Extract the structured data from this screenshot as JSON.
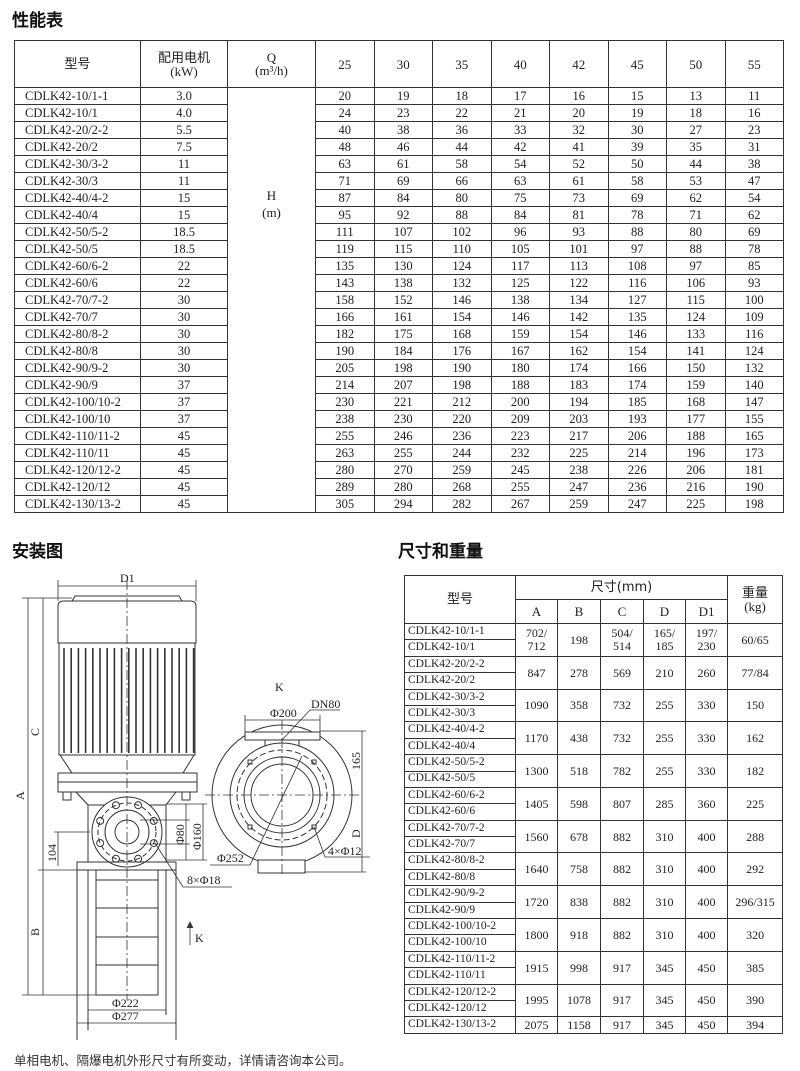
{
  "performance": {
    "title": "性能表",
    "headers": {
      "model": "型号",
      "motor": "配用电机",
      "motor_unit": "(kW)",
      "q": "Q",
      "q_unit": "(m³/h)",
      "h": "H",
      "h_unit": "(m)"
    },
    "flows": [
      "25",
      "30",
      "35",
      "40",
      "42",
      "45",
      "50",
      "55"
    ],
    "rows": [
      {
        "model": "CDLK42-10/1-1",
        "kw": "3.0",
        "h": [
          "20",
          "19",
          "18",
          "17",
          "16",
          "15",
          "13",
          "11"
        ]
      },
      {
        "model": "CDLK42-10/1",
        "kw": "4.0",
        "h": [
          "24",
          "23",
          "22",
          "21",
          "20",
          "19",
          "18",
          "16"
        ]
      },
      {
        "model": "CDLK42-20/2-2",
        "kw": "5.5",
        "h": [
          "40",
          "38",
          "36",
          "33",
          "32",
          "30",
          "27",
          "23"
        ]
      },
      {
        "model": "CDLK42-20/2",
        "kw": "7.5",
        "h": [
          "48",
          "46",
          "44",
          "42",
          "41",
          "39",
          "35",
          "31"
        ]
      },
      {
        "model": "CDLK42-30/3-2",
        "kw": "11",
        "h": [
          "63",
          "61",
          "58",
          "54",
          "52",
          "50",
          "44",
          "38"
        ]
      },
      {
        "model": "CDLK42-30/3",
        "kw": "11",
        "h": [
          "71",
          "69",
          "66",
          "63",
          "61",
          "58",
          "53",
          "47"
        ]
      },
      {
        "model": "CDLK42-40/4-2",
        "kw": "15",
        "h": [
          "87",
          "84",
          "80",
          "75",
          "73",
          "69",
          "62",
          "54"
        ]
      },
      {
        "model": "CDLK42-40/4",
        "kw": "15",
        "h": [
          "95",
          "92",
          "88",
          "84",
          "81",
          "78",
          "71",
          "62"
        ]
      },
      {
        "model": "CDLK42-50/5-2",
        "kw": "18.5",
        "h": [
          "111",
          "107",
          "102",
          "96",
          "93",
          "88",
          "80",
          "69"
        ]
      },
      {
        "model": "CDLK42-50/5",
        "kw": "18.5",
        "h": [
          "119",
          "115",
          "110",
          "105",
          "101",
          "97",
          "88",
          "78"
        ]
      },
      {
        "model": "CDLK42-60/6-2",
        "kw": "22",
        "h": [
          "135",
          "130",
          "124",
          "117",
          "113",
          "108",
          "97",
          "85"
        ]
      },
      {
        "model": "CDLK42-60/6",
        "kw": "22",
        "h": [
          "143",
          "138",
          "132",
          "125",
          "122",
          "116",
          "106",
          "93"
        ]
      },
      {
        "model": "CDLK42-70/7-2",
        "kw": "30",
        "h": [
          "158",
          "152",
          "146",
          "138",
          "134",
          "127",
          "115",
          "100"
        ]
      },
      {
        "model": "CDLK42-70/7",
        "kw": "30",
        "h": [
          "166",
          "161",
          "154",
          "146",
          "142",
          "135",
          "124",
          "109"
        ]
      },
      {
        "model": "CDLK42-80/8-2",
        "kw": "30",
        "h": [
          "182",
          "175",
          "168",
          "159",
          "154",
          "146",
          "133",
          "116"
        ]
      },
      {
        "model": "CDLK42-80/8",
        "kw": "30",
        "h": [
          "190",
          "184",
          "176",
          "167",
          "162",
          "154",
          "141",
          "124"
        ]
      },
      {
        "model": "CDLK42-90/9-2",
        "kw": "30",
        "h": [
          "205",
          "198",
          "190",
          "180",
          "174",
          "166",
          "150",
          "132"
        ]
      },
      {
        "model": "CDLK42-90/9",
        "kw": "37",
        "h": [
          "214",
          "207",
          "198",
          "188",
          "183",
          "174",
          "159",
          "140"
        ]
      },
      {
        "model": "CDLK42-100/10-2",
        "kw": "37",
        "h": [
          "230",
          "221",
          "212",
          "200",
          "194",
          "185",
          "168",
          "147"
        ]
      },
      {
        "model": "CDLK42-100/10",
        "kw": "37",
        "h": [
          "238",
          "230",
          "220",
          "209",
          "203",
          "193",
          "177",
          "155"
        ]
      },
      {
        "model": "CDLK42-110/11-2",
        "kw": "45",
        "h": [
          "255",
          "246",
          "236",
          "223",
          "217",
          "206",
          "188",
          "165"
        ]
      },
      {
        "model": "CDLK42-110/11",
        "kw": "45",
        "h": [
          "263",
          "255",
          "244",
          "232",
          "225",
          "214",
          "196",
          "173"
        ]
      },
      {
        "model": "CDLK42-120/12-2",
        "kw": "45",
        "h": [
          "280",
          "270",
          "259",
          "245",
          "238",
          "226",
          "206",
          "181"
        ]
      },
      {
        "model": "CDLK42-120/12",
        "kw": "45",
        "h": [
          "289",
          "280",
          "268",
          "255",
          "247",
          "236",
          "216",
          "190"
        ]
      },
      {
        "model": "CDLK42-130/13-2",
        "kw": "45",
        "h": [
          "305",
          "294",
          "282",
          "267",
          "259",
          "247",
          "225",
          "198"
        ]
      }
    ]
  },
  "installation": {
    "title": "安装图",
    "labels": {
      "d1": "D1",
      "a": "A",
      "c": "C",
      "b": "B",
      "h104": "104",
      "phi80": "Φ80",
      "phi160": "Φ160",
      "bolts8": "8×Φ18",
      "k_arrow": "K",
      "phi222": "Φ222",
      "phi277": "Φ277",
      "k_view": "K",
      "dn80": "DN80",
      "phi200": "Φ200",
      "d165": "165",
      "d": "D",
      "phi252": "Φ252",
      "bolts4": "4×Φ12"
    }
  },
  "dimensions": {
    "title": "尺寸和重量",
    "headers": {
      "model": "型号",
      "size": "尺寸(mm)",
      "weight": "重量",
      "weight_unit": "(kg)",
      "cols": [
        "A",
        "B",
        "C",
        "D",
        "D1"
      ]
    },
    "groups": [
      {
        "models": [
          "CDLK42-10/1-1",
          "CDLK42-10/1"
        ],
        "A": "702/\n712",
        "B": "198",
        "C": "504/\n514",
        "D": "165/\n185",
        "D1": "197/\n230",
        "kg": "60/65"
      },
      {
        "models": [
          "CDLK42-20/2-2",
          "CDLK42-20/2"
        ],
        "A": "847",
        "B": "278",
        "C": "569",
        "D": "210",
        "D1": "260",
        "kg": "77/84"
      },
      {
        "models": [
          "CDLK42-30/3-2",
          "CDLK42-30/3"
        ],
        "A": "1090",
        "B": "358",
        "C": "732",
        "D": "255",
        "D1": "330",
        "kg": "150"
      },
      {
        "models": [
          "CDLK42-40/4-2",
          "CDLK42-40/4"
        ],
        "A": "1170",
        "B": "438",
        "C": "732",
        "D": "255",
        "D1": "330",
        "kg": "162"
      },
      {
        "models": [
          "CDLK42-50/5-2",
          "CDLK42-50/5"
        ],
        "A": "1300",
        "B": "518",
        "C": "782",
        "D": "255",
        "D1": "330",
        "kg": "182"
      },
      {
        "models": [
          "CDLK42-60/6-2",
          "CDLK42-60/6"
        ],
        "A": "1405",
        "B": "598",
        "C": "807",
        "D": "285",
        "D1": "360",
        "kg": "225"
      },
      {
        "models": [
          "CDLK42-70/7-2",
          "CDLK42-70/7"
        ],
        "A": "1560",
        "B": "678",
        "C": "882",
        "D": "310",
        "D1": "400",
        "kg": "288"
      },
      {
        "models": [
          "CDLK42-80/8-2",
          "CDLK42-80/8"
        ],
        "A": "1640",
        "B": "758",
        "C": "882",
        "D": "310",
        "D1": "400",
        "kg": "292"
      },
      {
        "models": [
          "CDLK42-90/9-2",
          "CDLK42-90/9"
        ],
        "A": "1720",
        "B": "838",
        "C": "882",
        "D": "310",
        "D1": "400",
        "kg": "296/315"
      },
      {
        "models": [
          "CDLK42-100/10-2",
          "CDLK42-100/10"
        ],
        "A": "1800",
        "B": "918",
        "C": "882",
        "D": "310",
        "D1": "400",
        "kg": "320"
      },
      {
        "models": [
          "CDLK42-110/11-2",
          "CDLK42-110/11"
        ],
        "A": "1915",
        "B": "998",
        "C": "917",
        "D": "345",
        "D1": "450",
        "kg": "385"
      },
      {
        "models": [
          "CDLK42-120/12-2",
          "CDLK42-120/12"
        ],
        "A": "1995",
        "B": "1078",
        "C": "917",
        "D": "345",
        "D1": "450",
        "kg": "390"
      },
      {
        "models": [
          "CDLK42-130/13-2"
        ],
        "A": "2075",
        "B": "1158",
        "C": "917",
        "D": "345",
        "D1": "450",
        "kg": "394"
      }
    ]
  },
  "footer": "单相电机、隔爆电机外形尺寸有所变动，详情请咨询本公司。"
}
